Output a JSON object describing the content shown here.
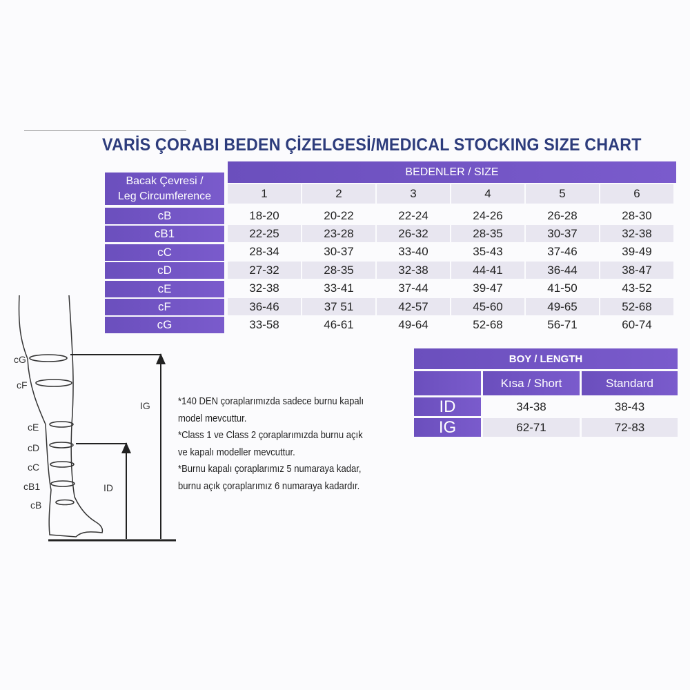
{
  "title": "VARİS ÇORABI BEDEN ÇİZELGESİ/MEDICAL STOCKING SIZE CHART",
  "colors": {
    "accent_purple": "#7556c5",
    "title_blue": "#2d3c7c",
    "alt_row": "#e8e6f0"
  },
  "size_table": {
    "corner_label_line1": "Bacak Çevresi /",
    "corner_label_line2": "Leg Circumference",
    "group_header": "BEDENLER / SIZE",
    "sizes": [
      "1",
      "2",
      "3",
      "4",
      "5",
      "6"
    ],
    "rows": [
      {
        "label": "cB",
        "values": [
          "18-20",
          "20-22",
          "22-24",
          "24-26",
          "26-28",
          "28-30"
        ]
      },
      {
        "label": "cB1",
        "values": [
          "22-25",
          "23-28",
          "26-32",
          "28-35",
          "30-37",
          "32-38"
        ]
      },
      {
        "label": "cC",
        "values": [
          "28-34",
          "30-37",
          "33-40",
          "35-43",
          "37-46",
          "39-49"
        ]
      },
      {
        "label": "cD",
        "values": [
          "27-32",
          "28-35",
          "32-38",
          "44-41",
          "36-44",
          "38-47"
        ]
      },
      {
        "label": "cE",
        "values": [
          "32-38",
          "33-41",
          "37-44",
          "39-47",
          "41-50",
          "43-52"
        ]
      },
      {
        "label": "cF",
        "values": [
          "36-46",
          "37 51",
          "42-57",
          "45-60",
          "49-65",
          "52-68"
        ]
      },
      {
        "label": "cG",
        "values": [
          "33-58",
          "46-61",
          "49-64",
          "52-68",
          "56-71",
          "60-74"
        ]
      }
    ]
  },
  "length_table": {
    "header": "BOY / LENGTH",
    "columns": [
      "Kısa / Short",
      "Standard"
    ],
    "rows": [
      {
        "label": "ID",
        "values": [
          "34-38",
          "38-43"
        ]
      },
      {
        "label": "IG",
        "values": [
          "62-71",
          "72-83"
        ]
      }
    ]
  },
  "diagram": {
    "labels": [
      "cG",
      "cF",
      "cE",
      "cD",
      "cC",
      "cB1",
      "cB"
    ],
    "ig_label": "IG",
    "id_label": "ID"
  },
  "notes": [
    "*140 DEN çoraplarımızda sadece burnu kapalı",
    "model mevcuttur.",
    "*Class 1 ve Class 2 çoraplarımızda burnu açık",
    "ve kapalı modeller mevcuttur.",
    "*Burnu kapalı çoraplarımız 5 numaraya kadar,",
    "burnu açık çoraplarımız 6 numaraya kadardır."
  ]
}
